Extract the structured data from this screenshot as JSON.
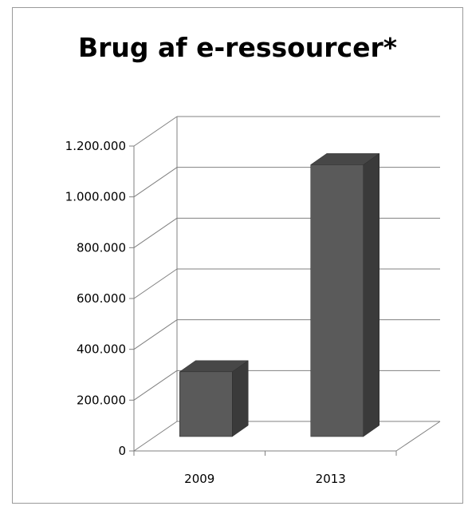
{
  "chart_data": {
    "type": "bar",
    "title": "Brug af e-ressourcer*",
    "categories": [
      "2009",
      "2013"
    ],
    "values": [
      255000,
      1070000
    ],
    "ylim": [
      0,
      1200000
    ],
    "y_ticks": [
      0,
      200000,
      400000,
      600000,
      800000,
      1000000,
      1200000
    ],
    "y_tick_labels": [
      "0",
      "200.000",
      "400.000",
      "600.000",
      "800.000",
      "1.000.000",
      "1.200.000"
    ],
    "xlabel": "",
    "ylabel": "",
    "grid": true,
    "legend": "none",
    "three_d": true,
    "colors": {
      "bar_front": "#5a5a5a",
      "bar_side": "#3a3a3a",
      "bar_top": "#474747",
      "grid": "#808080",
      "axis": "#808080"
    }
  }
}
